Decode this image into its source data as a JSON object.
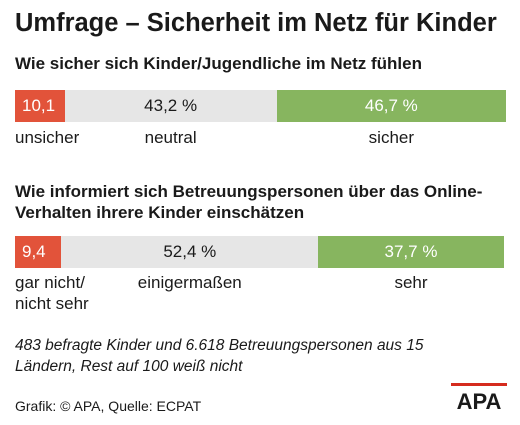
{
  "header": {
    "title": "Umfrage – Sicherheit im Netz für Kinder"
  },
  "footer": {
    "note": "483 befragte Kinder und 6.618 Betreuungspersonen aus 15 Ländern, Rest auf 100 weiß nicht",
    "source": "Grafik: © APA, Quelle: ECPAT",
    "logo_text": "APA"
  },
  "chart_data": [
    {
      "type": "bar",
      "orientation": "horizontal-stacked",
      "title": "Wie sicher sich Kinder/Jugendliche im Netz fühlen",
      "categories": [
        "unsicher",
        "neutral",
        "sicher"
      ],
      "values": [
        10.1,
        43.2,
        46.7
      ],
      "value_labels": [
        "10,1",
        "43,2 %",
        "46,7 %"
      ],
      "colors": [
        "#e2533a",
        "#e6e6e6",
        "#87b55f"
      ],
      "xlim": [
        0,
        100
      ]
    },
    {
      "type": "bar",
      "orientation": "horizontal-stacked",
      "title": "Wie informiert sich Betreuungspersonen über das Online-Verhalten ihrere Kinder einschätzen",
      "categories": [
        "gar nicht/ nicht sehr",
        "einigermaßen",
        "sehr"
      ],
      "values": [
        9.4,
        52.4,
        37.7
      ],
      "value_labels": [
        "9,4",
        "52,4 %",
        "37,7 %"
      ],
      "colors": [
        "#e2533a",
        "#e6e6e6",
        "#87b55f"
      ],
      "xlim": [
        0,
        100
      ]
    }
  ],
  "colors": {
    "red": "#e2533a",
    "gray": "#e6e6e6",
    "green": "#87b55f",
    "logo_red": "#d52b1e"
  }
}
